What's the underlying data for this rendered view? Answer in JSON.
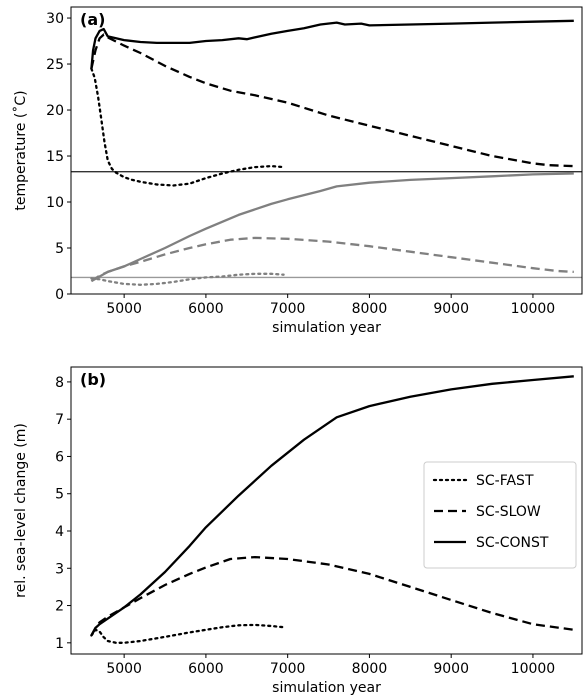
{
  "chart_data": [
    {
      "type": "line",
      "panel_label": "(a)",
      "xlabel": "simulation year",
      "ylabel": "temperature (˚C)",
      "xlim": [
        4350,
        10600
      ],
      "ylim": [
        0,
        31.2
      ],
      "xticks": [
        5000,
        6000,
        7000,
        8000,
        9000,
        10000
      ],
      "yticks": [
        0,
        5,
        10,
        15,
        20,
        25,
        30
      ],
      "grid": false,
      "legend": "none",
      "hlines": [
        {
          "y": 13.3,
          "color": "#333333"
        },
        {
          "y": 1.8,
          "color": "#999999"
        }
      ],
      "series": [
        {
          "style": "dotted",
          "color": "#000000",
          "x": [
            4600,
            4640,
            4680,
            4720,
            4760,
            4800,
            4850,
            4900,
            5000,
            5100,
            5200,
            5400,
            5600,
            5800,
            6000,
            6200,
            6400,
            6600,
            6800,
            6950
          ],
          "y": [
            24.5,
            23.5,
            21.5,
            19.0,
            16.5,
            14.5,
            13.6,
            13.2,
            12.7,
            12.4,
            12.2,
            11.9,
            11.8,
            12.0,
            12.6,
            13.1,
            13.5,
            13.8,
            13.9,
            13.8
          ]
        },
        {
          "style": "dashed",
          "color": "#000000",
          "x": [
            4600,
            4650,
            4700,
            4750,
            4800,
            5000,
            5200,
            5500,
            5800,
            6000,
            6300,
            6600,
            7000,
            7500,
            8000,
            8500,
            9000,
            9500,
            10000,
            10200,
            10500
          ],
          "y": [
            24.5,
            26.5,
            27.8,
            28.2,
            27.9,
            27.0,
            26.2,
            24.8,
            23.6,
            22.9,
            22.1,
            21.6,
            20.8,
            19.4,
            18.3,
            17.2,
            16.1,
            15.0,
            14.2,
            14.0,
            13.9
          ]
        },
        {
          "style": "solid",
          "color": "#000000",
          "x": [
            4600,
            4620,
            4650,
            4700,
            4750,
            4800,
            4900,
            5000,
            5200,
            5400,
            5600,
            5800,
            6000,
            6200,
            6400,
            6500,
            6800,
            7000,
            7200,
            7400,
            7600,
            7700,
            7900,
            8000,
            8500,
            9000,
            9500,
            10000,
            10500
          ],
          "y": [
            24.5,
            26.5,
            27.8,
            28.6,
            28.8,
            28.0,
            27.8,
            27.6,
            27.4,
            27.3,
            27.3,
            27.3,
            27.5,
            27.6,
            27.8,
            27.7,
            28.3,
            28.6,
            28.9,
            29.3,
            29.5,
            29.3,
            29.4,
            29.2,
            29.3,
            29.4,
            29.5,
            29.6,
            29.7
          ]
        },
        {
          "style": "dotted",
          "color": "#808080",
          "x": [
            4600,
            4700,
            4800,
            5000,
            5200,
            5400,
            5600,
            5800,
            6000,
            6200,
            6400,
            6600,
            6800,
            6950
          ],
          "y": [
            1.7,
            1.6,
            1.4,
            1.1,
            1.0,
            1.1,
            1.3,
            1.6,
            1.8,
            1.9,
            2.1,
            2.2,
            2.2,
            2.1
          ]
        },
        {
          "style": "dashed",
          "color": "#808080",
          "x": [
            4600,
            4700,
            4800,
            5000,
            5200,
            5500,
            5800,
            6000,
            6300,
            6600,
            7000,
            7500,
            8000,
            8500,
            9000,
            9500,
            10000,
            10300,
            10500
          ],
          "y": [
            1.4,
            2.0,
            2.4,
            3.0,
            3.5,
            4.3,
            5.0,
            5.4,
            5.9,
            6.1,
            6.0,
            5.7,
            5.2,
            4.6,
            4.0,
            3.4,
            2.8,
            2.5,
            2.4
          ]
        },
        {
          "style": "solid",
          "color": "#808080",
          "x": [
            4600,
            4700,
            4800,
            5000,
            5200,
            5500,
            5800,
            6000,
            6400,
            6800,
            7000,
            7400,
            7600,
            8000,
            8500,
            9000,
            9500,
            10000,
            10500
          ],
          "y": [
            1.4,
            1.9,
            2.4,
            3.0,
            3.8,
            5.0,
            6.3,
            7.1,
            8.6,
            9.8,
            10.3,
            11.2,
            11.7,
            12.1,
            12.4,
            12.6,
            12.8,
            13.0,
            13.1
          ]
        }
      ]
    },
    {
      "type": "line",
      "panel_label": "(b)",
      "xlabel": "simulation year",
      "ylabel": "rel. sea-level change (m)",
      "xlim": [
        4350,
        10600
      ],
      "ylim": [
        0.7,
        8.4
      ],
      "xticks": [
        5000,
        6000,
        7000,
        8000,
        9000,
        10000
      ],
      "yticks": [
        1,
        2,
        3,
        4,
        5,
        6,
        7,
        8
      ],
      "grid": false,
      "legend": "right",
      "series": [
        {
          "name": "SC-FAST",
          "style": "dotted",
          "color": "#000000",
          "x": [
            4600,
            4650,
            4700,
            4750,
            4800,
            4900,
            5000,
            5200,
            5400,
            5600,
            5800,
            6000,
            6200,
            6400,
            6600,
            6800,
            6950
          ],
          "y": [
            1.2,
            1.35,
            1.3,
            1.15,
            1.05,
            1.0,
            1.0,
            1.05,
            1.12,
            1.2,
            1.28,
            1.35,
            1.42,
            1.47,
            1.48,
            1.45,
            1.42
          ]
        },
        {
          "name": "SC-SLOW",
          "style": "dashed",
          "color": "#000000",
          "x": [
            4600,
            4650,
            4700,
            4800,
            5000,
            5200,
            5500,
            5800,
            6000,
            6300,
            6600,
            7000,
            7500,
            8000,
            8500,
            9000,
            9500,
            10000,
            10500
          ],
          "y": [
            1.2,
            1.4,
            1.55,
            1.7,
            1.95,
            2.2,
            2.55,
            2.85,
            3.02,
            3.25,
            3.3,
            3.25,
            3.1,
            2.85,
            2.5,
            2.15,
            1.8,
            1.5,
            1.35
          ]
        },
        {
          "name": "SC-CONST",
          "style": "solid",
          "color": "#000000",
          "x": [
            4600,
            4650,
            4700,
            4800,
            5000,
            5200,
            5500,
            5800,
            6000,
            6400,
            6800,
            7200,
            7600,
            8000,
            8500,
            9000,
            9500,
            10000,
            10500
          ],
          "y": [
            1.2,
            1.4,
            1.5,
            1.65,
            1.95,
            2.3,
            2.9,
            3.6,
            4.1,
            4.95,
            5.75,
            6.45,
            7.05,
            7.35,
            7.6,
            7.8,
            7.95,
            8.05,
            8.15
          ]
        }
      ]
    }
  ]
}
